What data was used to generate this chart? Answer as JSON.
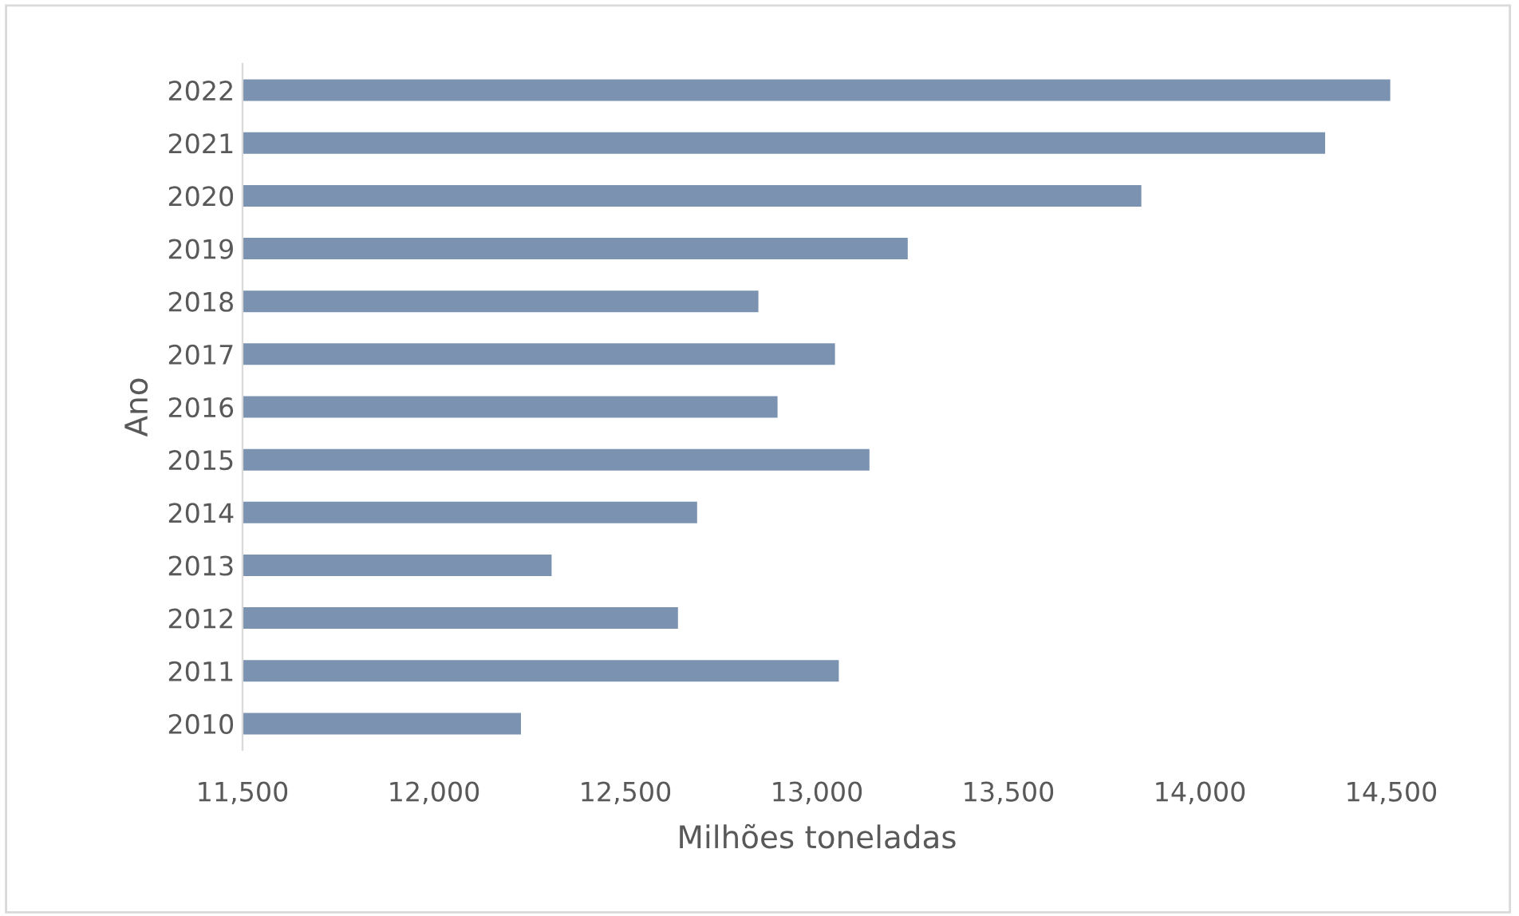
{
  "chart_data": {
    "type": "bar",
    "orientation": "horizontal",
    "xlabel": "Milhões toneladas",
    "ylabel": "Ano",
    "categories": [
      "2022",
      "2021",
      "2020",
      "2019",
      "2018",
      "2017",
      "2016",
      "2015",
      "2014",
      "2013",
      "2012",
      "2011",
      "2010"
    ],
    "values": [
      14500,
      14330,
      13850,
      13240,
      12850,
      13050,
      12900,
      13140,
      12690,
      12310,
      12640,
      13060,
      12230
    ],
    "color": "#7b93b0",
    "xlim": [
      11500,
      14500
    ],
    "xticks": [
      {
        "value": 11500,
        "label": "11,500"
      },
      {
        "value": 12000,
        "label": "12,000"
      },
      {
        "value": 12500,
        "label": "12,500"
      },
      {
        "value": 13000,
        "label": "13,000"
      },
      {
        "value": 13500,
        "label": "13,500"
      },
      {
        "value": 14000,
        "label": "14,000"
      },
      {
        "value": 14500,
        "label": "14,500"
      }
    ],
    "grid": false,
    "legend": false
  }
}
